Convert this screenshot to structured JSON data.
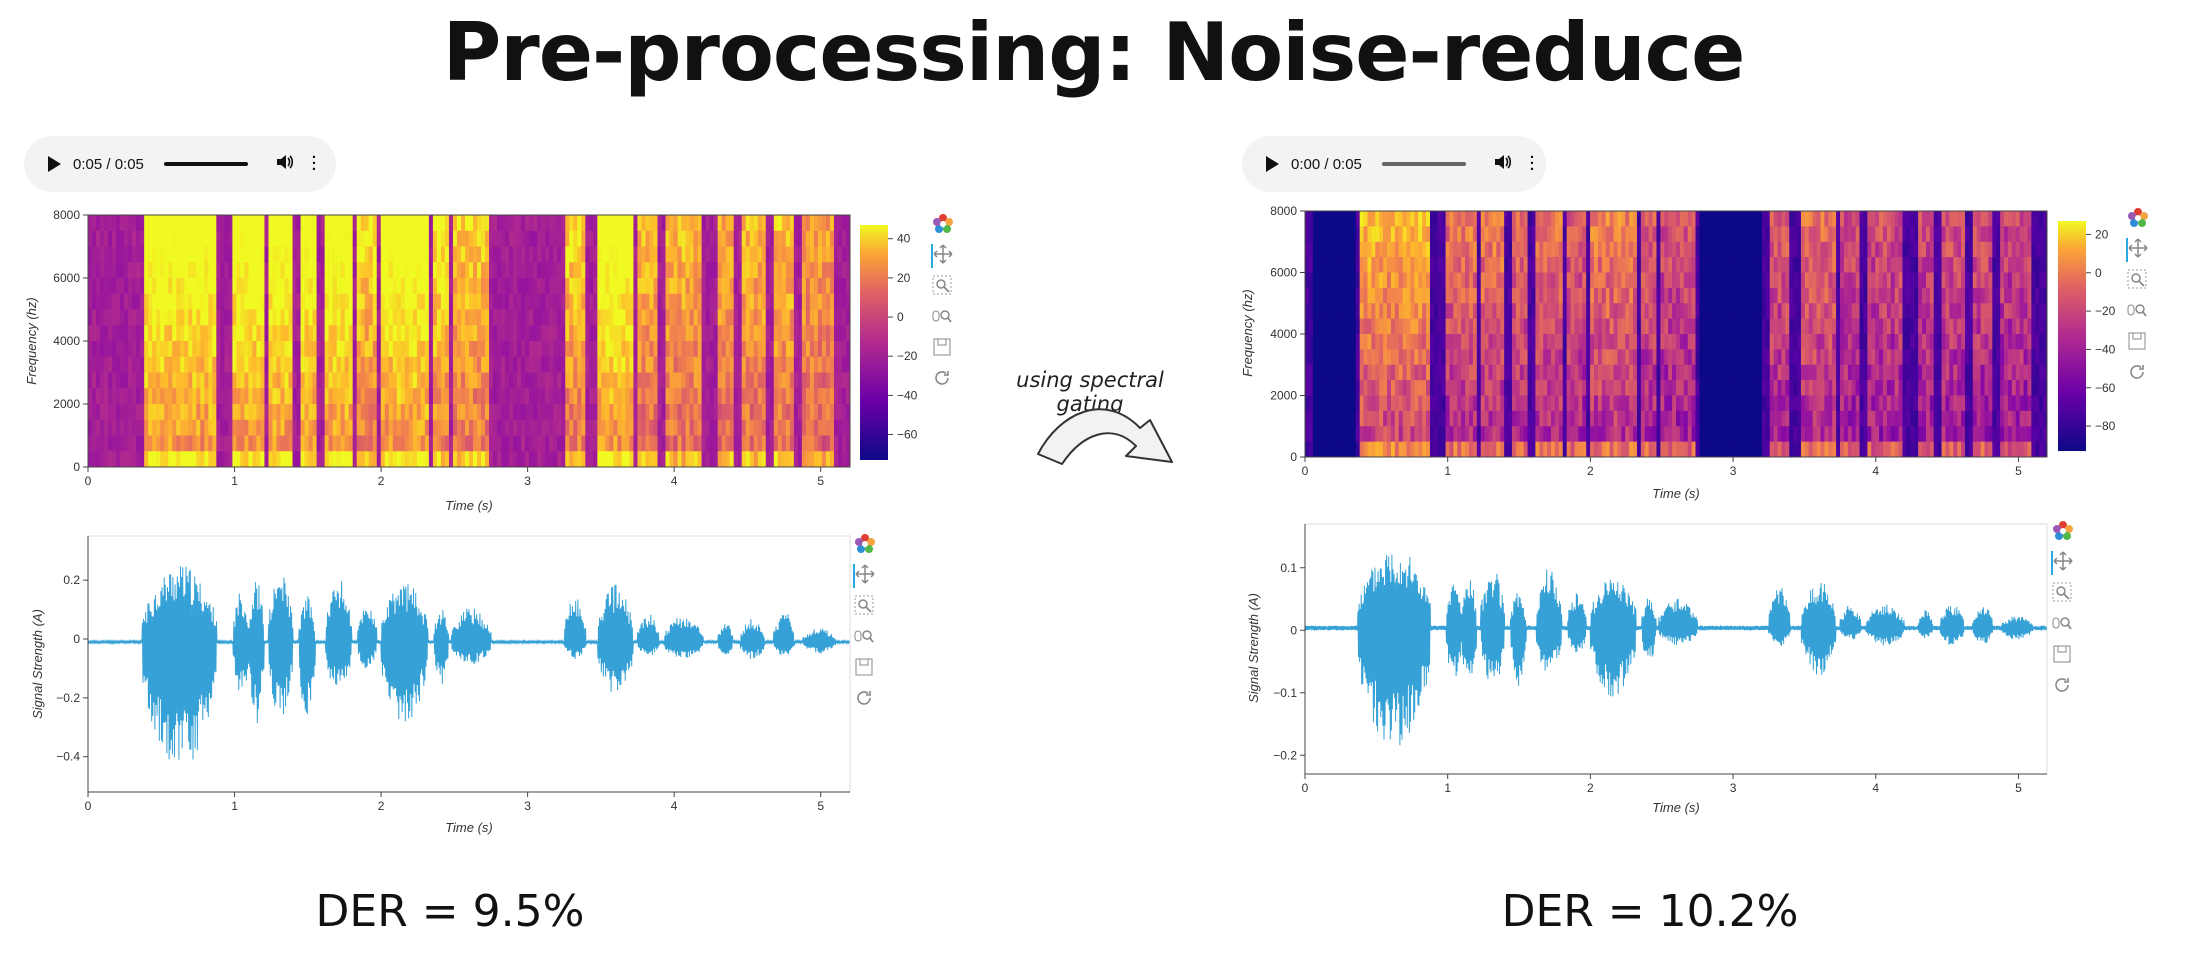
{
  "slide": {
    "title": "Pre-processing: Noise-reduce"
  },
  "arrow_caption": "using spectral gating",
  "left": {
    "player": {
      "time": "0:05 / 0:05",
      "progress": 1.0
    },
    "spectrogram": {
      "ylabel": "Frequency (hz)",
      "xlabel": "Time (s)",
      "yticks": [
        "0",
        "2000",
        "4000",
        "6000",
        "8000"
      ],
      "xticks": [
        "0",
        "1",
        "2",
        "3",
        "4",
        "5"
      ],
      "colorbar_ticks": [
        "40",
        "20",
        "0",
        "−20",
        "−40",
        "−60"
      ]
    },
    "waveform": {
      "ylabel": "Signal Strength (A)",
      "xlabel": "Time (s)",
      "yticks": [
        "0.2",
        "0",
        "−0.2",
        "−0.4"
      ],
      "xticks": [
        "0",
        "1",
        "2",
        "3",
        "4",
        "5"
      ]
    },
    "der": "DER = 9.5%"
  },
  "right": {
    "player": {
      "time": "0:00 / 0:05",
      "progress": 0.0
    },
    "spectrogram": {
      "ylabel": "Frequency (hz)",
      "xlabel": "Time (s)",
      "yticks": [
        "0",
        "2000",
        "4000",
        "6000",
        "8000"
      ],
      "xticks": [
        "0",
        "1",
        "2",
        "3",
        "4",
        "5"
      ],
      "colorbar_ticks": [
        "20",
        "0",
        "−20",
        "−40",
        "−60",
        "−80"
      ]
    },
    "waveform": {
      "ylabel": "Signal Strength (A)",
      "xlabel": "Time (s)",
      "yticks": [
        "0.1",
        "0",
        "−0.1",
        "−0.2"
      ],
      "xticks": [
        "0",
        "1",
        "2",
        "3",
        "4",
        "5"
      ]
    },
    "der": "DER = 10.2%"
  },
  "toolbar_icons": [
    "bokeh-logo-icon",
    "pan-icon",
    "box-zoom-icon",
    "wheel-zoom-icon",
    "save-icon",
    "reset-icon"
  ],
  "chart_data": [
    {
      "type": "heatmap",
      "panel": "left-spectrogram",
      "xlabel": "Time (s)",
      "ylabel": "Frequency (hz)",
      "xlim": [
        0,
        5.2
      ],
      "ylim": [
        0,
        8000
      ],
      "colorbar_range": [
        -70,
        50
      ],
      "colormap": "plasma"
    },
    {
      "type": "line",
      "panel": "left-waveform",
      "xlabel": "Time (s)",
      "ylabel": "Signal Strength (A)",
      "xlim": [
        0,
        5.2
      ],
      "ylim": [
        -0.52,
        0.35
      ],
      "color": "#35a1d6",
      "bursts": [
        [
          0.37,
          0.88,
          0.27,
          -0.46
        ],
        [
          0.99,
          1.1,
          0.18,
          -0.2
        ],
        [
          1.1,
          1.2,
          0.22,
          -0.3
        ],
        [
          1.23,
          1.4,
          0.24,
          -0.28
        ],
        [
          1.44,
          1.55,
          0.16,
          -0.28
        ],
        [
          1.62,
          1.8,
          0.22,
          -0.18
        ],
        [
          1.84,
          1.97,
          0.14,
          -0.1
        ],
        [
          2.0,
          2.32,
          0.21,
          -0.3
        ],
        [
          2.36,
          2.46,
          0.12,
          -0.15
        ],
        [
          2.48,
          2.75,
          0.12,
          -0.08
        ],
        [
          3.25,
          3.4,
          0.16,
          -0.06
        ],
        [
          3.48,
          3.72,
          0.2,
          -0.2
        ],
        [
          3.75,
          3.9,
          0.1,
          -0.05
        ],
        [
          3.93,
          4.2,
          0.09,
          -0.06
        ],
        [
          4.3,
          4.4,
          0.07,
          -0.05
        ],
        [
          4.45,
          4.62,
          0.08,
          -0.06
        ],
        [
          4.68,
          4.82,
          0.11,
          -0.06
        ],
        [
          4.88,
          5.1,
          0.05,
          -0.04
        ]
      ]
    },
    {
      "type": "heatmap",
      "panel": "right-spectrogram",
      "xlabel": "Time (s)",
      "ylabel": "Frequency (hz)",
      "xlim": [
        0,
        5.2
      ],
      "ylim": [
        0,
        8000
      ],
      "colorbar_range": [
        -80,
        30
      ],
      "colormap": "plasma"
    },
    {
      "type": "line",
      "panel": "right-waveform",
      "xlabel": "Time (s)",
      "ylabel": "Signal Strength (A)",
      "xlim": [
        0,
        5.2
      ],
      "ylim": [
        -0.23,
        0.17
      ],
      "color": "#35a1d6",
      "bursts": [
        [
          0.37,
          0.88,
          0.14,
          -0.21
        ],
        [
          0.99,
          1.1,
          0.08,
          -0.09
        ],
        [
          1.1,
          1.2,
          0.09,
          -0.11
        ],
        [
          1.23,
          1.4,
          0.1,
          -0.1
        ],
        [
          1.44,
          1.55,
          0.06,
          -0.1
        ],
        [
          1.62,
          1.8,
          0.1,
          -0.08
        ],
        [
          1.84,
          1.97,
          0.06,
          -0.05
        ],
        [
          2.0,
          2.32,
          0.09,
          -0.12
        ],
        [
          2.36,
          2.46,
          0.05,
          -0.06
        ],
        [
          2.48,
          2.75,
          0.05,
          -0.03
        ],
        [
          3.25,
          3.4,
          0.07,
          -0.03
        ],
        [
          3.48,
          3.72,
          0.08,
          -0.08
        ],
        [
          3.75,
          3.9,
          0.04,
          -0.02
        ],
        [
          3.93,
          4.2,
          0.04,
          -0.03
        ],
        [
          4.3,
          4.4,
          0.03,
          -0.02
        ],
        [
          4.45,
          4.62,
          0.04,
          -0.03
        ],
        [
          4.68,
          4.82,
          0.04,
          -0.03
        ],
        [
          4.88,
          5.1,
          0.02,
          -0.02
        ]
      ]
    }
  ]
}
